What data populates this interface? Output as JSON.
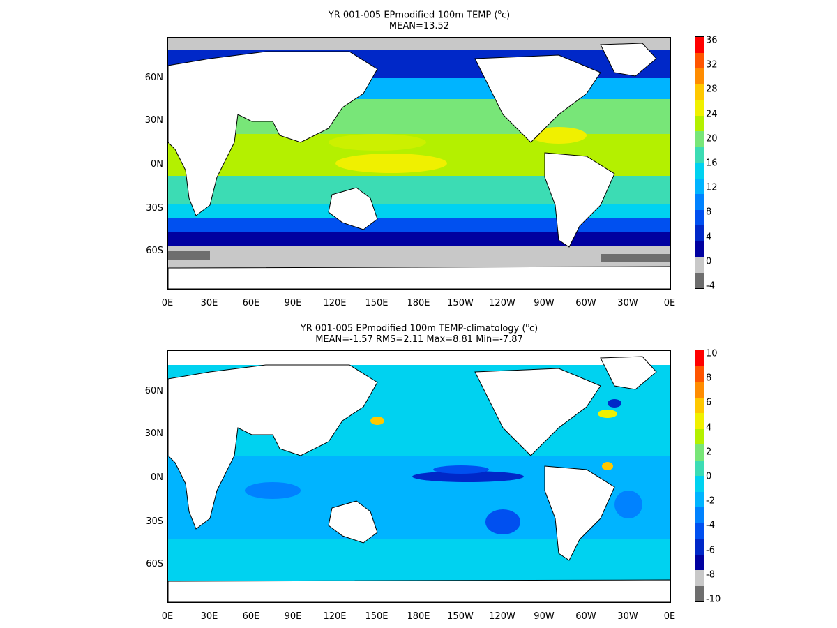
{
  "panels": [
    {
      "title_prefix": "YR 001-005 EPmodified 100m TEMP (",
      "title_sup": "o",
      "title_suffix": "c)",
      "subtitle": "MEAN=13.52",
      "xticks": [
        "0E",
        "30E",
        "60E",
        "90E",
        "120E",
        "150E",
        "180E",
        "150W",
        "120W",
        "90W",
        "60W",
        "30W",
        "0E"
      ],
      "yticks": [
        "60N",
        "30N",
        "0N",
        "30S",
        "60S"
      ],
      "colorbar": {
        "labels": [
          "36",
          "32",
          "28",
          "24",
          "20",
          "16",
          "12",
          "8",
          "4",
          "0",
          "-4"
        ],
        "colors": [
          "#ff0000",
          "#ff5500",
          "#ff8c00",
          "#ffc800",
          "#f0f000",
          "#b4f000",
          "#78e678",
          "#3cdcb4",
          "#00d2f0",
          "#00b4ff",
          "#0082ff",
          "#0050f0",
          "#0028c8",
          "#0000a0",
          "#c8c8c8",
          "#6e6e6e"
        ]
      }
    },
    {
      "title_prefix": "YR 001-005 EPmodified 100m TEMP-climatology (",
      "title_sup": "o",
      "title_suffix": "c)",
      "subtitle": "MEAN=-1.57   RMS=2.11   Max=8.81   Min=-7.87",
      "xticks": [
        "0E",
        "30E",
        "60E",
        "90E",
        "120E",
        "150E",
        "180E",
        "150W",
        "120W",
        "90W",
        "60W",
        "30W",
        "0E"
      ],
      "yticks": [
        "60N",
        "30N",
        "0N",
        "30S",
        "60S"
      ],
      "colorbar": {
        "labels": [
          "10",
          "8",
          "6",
          "4",
          "2",
          "0",
          "-2",
          "-4",
          "-6",
          "-8",
          "-10"
        ],
        "colors": [
          "#ff0000",
          "#ff5500",
          "#ff8c00",
          "#ffc800",
          "#f0f000",
          "#b4f000",
          "#78e678",
          "#3cdcb4",
          "#00d2f0",
          "#00b4ff",
          "#0082ff",
          "#0050f0",
          "#0028c8",
          "#0000a0",
          "#c8c8c8",
          "#6e6e6e"
        ]
      }
    }
  ]
}
